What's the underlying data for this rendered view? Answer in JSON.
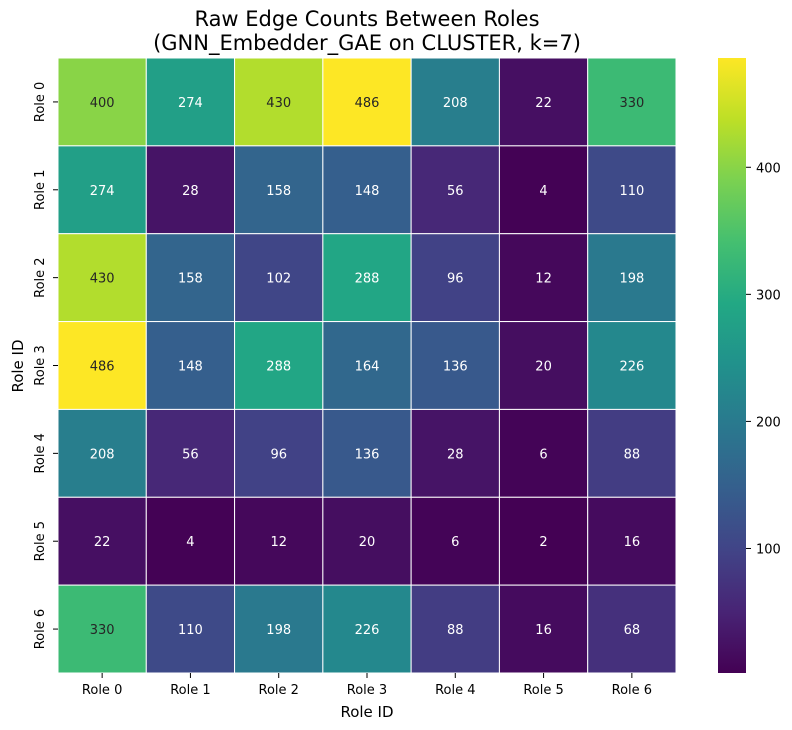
{
  "chart_data": {
    "type": "heatmap",
    "title_line1": "Raw Edge Counts Between Roles",
    "title_line2": "(GNN_Embedder_GAE on CLUSTER, k=7)",
    "xlabel": "Role ID",
    "ylabel": "Role ID",
    "x_categories": [
      "Role 0",
      "Role 1",
      "Role 2",
      "Role 3",
      "Role 4",
      "Role 5",
      "Role 6"
    ],
    "y_categories": [
      "Role 0",
      "Role 1",
      "Role 2",
      "Role 3",
      "Role 4",
      "Role 5",
      "Role 6"
    ],
    "values": [
      [
        400,
        274,
        430,
        486,
        208,
        22,
        330
      ],
      [
        274,
        28,
        158,
        148,
        56,
        4,
        110
      ],
      [
        430,
        158,
        102,
        288,
        96,
        12,
        198
      ],
      [
        486,
        148,
        288,
        164,
        136,
        20,
        226
      ],
      [
        208,
        56,
        96,
        136,
        28,
        6,
        88
      ],
      [
        22,
        4,
        12,
        20,
        6,
        2,
        16
      ],
      [
        330,
        110,
        198,
        226,
        88,
        16,
        68
      ]
    ],
    "colormap": "viridis",
    "value_range": [
      2,
      486
    ],
    "colorbar_ticks": [
      "100",
      "200",
      "300",
      "400"
    ],
    "annotated": true
  }
}
